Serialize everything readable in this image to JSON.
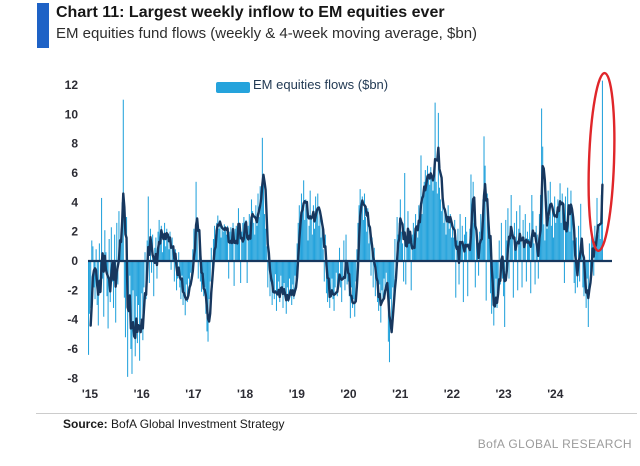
{
  "header": {
    "title": "Chart 11: Largest weekly inflow to EM equities ever",
    "subtitle": "EM equities fund flows (weekly & 4-week moving average, $bn)"
  },
  "legend": {
    "label": "EM equities flows ($bn)"
  },
  "footer": {
    "source_label": "Source:",
    "source_text": " BofA Global Investment Strategy",
    "brand": "BofA GLOBAL RESEARCH"
  },
  "colors": {
    "accent_bar": "#1e62c6",
    "bars": "#25a3dc",
    "ma_line": "#17375e",
    "annotation_red": "#e0262a",
    "brand_gray": "#9b9b9b"
  },
  "chart_data": {
    "type": "bar",
    "title": "EM equities fund flows",
    "unit": "$bn",
    "frequency": "weekly",
    "grid": false,
    "legend_position": "top-center",
    "x_ticks": [
      "'15",
      "'16",
      "'17",
      "'18",
      "'19",
      "'20",
      "'21",
      "'22",
      "'23",
      "'24"
    ],
    "y_ticks": [
      12,
      10,
      8,
      6,
      4,
      2,
      0,
      -2,
      -4,
      -6,
      -8
    ],
    "ylim": [
      -8,
      12
    ],
    "series": [
      {
        "name": "EM equities flows ($bn)",
        "type": "bar",
        "color": "#25a3dc",
        "values": [
          -6.4,
          -3.6,
          -3.2,
          1.4,
          1.0,
          -1.8,
          -2.6,
          0.8,
          -3.0,
          -4.4,
          1.2,
          -2.2,
          4.3,
          -1.2,
          -3.8,
          2.1,
          0.6,
          -2.4,
          -4.6,
          1.5,
          -2.8,
          2.3,
          -1.4,
          -3.2,
          1.8,
          -4.2,
          2.6,
          -1.6,
          3.4,
          1.2,
          2.2,
          4.0,
          11.0,
          -2.5,
          -5.2,
          3.0,
          -7.9,
          -3.5,
          -1.0,
          -6.0,
          -7.7,
          -2.0,
          -4.8,
          -6.5,
          -2.4,
          -5.6,
          -3.0,
          -6.8,
          -4.0,
          -2.2,
          -5.4,
          -1.8,
          0.6,
          -2.6,
          1.4,
          4.4,
          -1.5,
          2.2,
          -0.8,
          1.8,
          -2.4,
          0.9,
          1.6,
          -1.2,
          2.0,
          2.8,
          1.2,
          2.4,
          0.6,
          1.8,
          2.6,
          1.0,
          2.2,
          1.4,
          0.8,
          2.0,
          -0.6,
          1.6,
          1.0,
          -1.4,
          0.8,
          -2.0,
          -1.2,
          0.6,
          -1.8,
          -2.6,
          -1.0,
          -3.0,
          -2.2,
          -3.7,
          -1.6,
          -2.8,
          -1.2,
          -1.6,
          -0.8,
          -1.2,
          0.8,
          2.2,
          1.4,
          5.4,
          2.6,
          -1.2,
          1.6,
          -1.4,
          -2.1,
          -1.6,
          -2.4,
          -1.8,
          -3.6,
          -4.8,
          -5.5,
          -2.6,
          -1.4,
          0.9,
          -1.8,
          1.5,
          2.4,
          1.8,
          2.6,
          3.1,
          2.2,
          2.8,
          1.6,
          2.4,
          2.0,
          2.5,
          2.2,
          1.8,
          2.4,
          -1.2,
          2.0,
          2.3,
          1.8,
          2.6,
          -1.7,
          2.2,
          2.4,
          1.9,
          3.6,
          2.2,
          -1.5,
          2.0,
          2.6,
          3.0,
          2.2,
          2.8,
          -1.5,
          2.4,
          3.2,
          2.0,
          4.2,
          3.4,
          2.6,
          1.8,
          3.8,
          2.4,
          4.6,
          3.0,
          5.1,
          4.4,
          8.4,
          5.6,
          3.2,
          2.2,
          1.0,
          -1.8,
          0.8,
          -2.4,
          -1.2,
          -3.0,
          -1.8,
          -2.6,
          -0.9,
          -3.4,
          -2.2,
          -1.4,
          -2.8,
          -1.0,
          -2.0,
          -3.2,
          -1.5,
          -2.4,
          -3.6,
          -1.8,
          -2.8,
          -1.2,
          -2.2,
          -3.0,
          -1.6,
          -2.6,
          -1.0,
          -2.0,
          1.2,
          2.6,
          3.8,
          2.2,
          4.6,
          3.4,
          5.5,
          2.8,
          4.2,
          3.6,
          1.4,
          2.4,
          4.8,
          3.0,
          1.8,
          3.8,
          2.2,
          4.4,
          3.2,
          4.6,
          2.4,
          3.4,
          1.6,
          2.8,
          0.8,
          -1.4,
          1.8,
          -2.2,
          -2.8,
          -1.6,
          -3.2,
          -2.0,
          -1.2,
          -2.6,
          -3.4,
          -1.8,
          -0.8,
          -2.4,
          -1.4,
          0.9,
          -1.8,
          -2.8,
          -1.2,
          1.4,
          -2.0,
          1.8,
          -1.6,
          -1.4,
          -2.4,
          -3.9,
          -1.8,
          -3.2,
          -2.6,
          -3.8,
          -1.4,
          0.8,
          2.6,
          3.8,
          4.9,
          3.4,
          4.4,
          2.8,
          4.6,
          3.0,
          2.0,
          3.6,
          1.2,
          2.4,
          -1.0,
          1.6,
          -1.8,
          0.9,
          -2.4,
          -1.2,
          -2.8,
          -3.4,
          -1.6,
          -4.2,
          -2.0,
          -2.8,
          -1.2,
          -2.2,
          -0.8,
          -1.8,
          -5.5,
          -6.9,
          -2.6,
          -4.4,
          -1.8,
          -3.0,
          1.5,
          -1.4,
          3.0,
          1.8,
          2.6,
          4.2,
          2.0,
          1.2,
          -1.4,
          6.0,
          -1.6,
          1.0,
          3.4,
          2.2,
          1.4,
          -2.0,
          1.8,
          2.6,
          1.2,
          3.2,
          2.4,
          1.6,
          3.8,
          2.8,
          7.2,
          3.2,
          4.5,
          5.4,
          6.2,
          5.0,
          6.5,
          5.8,
          5.2,
          6.4,
          5.6,
          4.8,
          6.6,
          10.8,
          5.4,
          4.6,
          10.1,
          5.0,
          4.2,
          3.4,
          4.4,
          2.6,
          3.6,
          1.8,
          2.8,
          3.8,
          2.2,
          3.2,
          1.6,
          2.4,
          1.6,
          2.8,
          -2.5,
          1.4,
          2.2,
          -1.6,
          3.2,
          1.2,
          2.4,
          -2.8,
          1.8,
          3.0,
          2.0,
          -2.4,
          1.2,
          2.2,
          5.9,
          3.4,
          5.4,
          2.6,
          -1.8,
          2.2,
          1.4,
          -1.0,
          2.0,
          3.2,
          1.8,
          4.2,
          8.5,
          6.5,
          -2.7,
          4.6,
          2.8,
          1.6,
          -2.2,
          -3.6,
          -1.8,
          -4.4,
          -2.6,
          -1.2,
          -3.2,
          -2.0,
          1.4,
          -1.6,
          2.6,
          -1.2,
          -2.4,
          -4.5,
          2.8,
          1.4,
          3.6,
          -1.2,
          2.4,
          4.5,
          1.8,
          -2.5,
          2.6,
          1.2,
          3.4,
          -2.0,
          2.2,
          3.8,
          1.6,
          -1.8,
          2.8,
          1.2,
          3.2,
          -1.4,
          2.0,
          1.5,
          2.6,
          -2.2,
          4.5,
          3.4,
          1.2,
          -1.6,
          2.4,
          1.8,
          -1.2,
          3.2,
          4.5,
          10.4,
          7.8,
          2.5,
          1.4,
          3.6,
          2.2,
          4.8,
          3.0,
          5.4,
          2.4,
          3.8,
          1.6,
          4.4,
          2.6,
          3.4,
          4.2,
          3.4,
          5.3,
          2.6,
          4.6,
          3.0,
          -1.5,
          4.4,
          2.2,
          5.0,
          3.6,
          2.0,
          4.8,
          3.8,
          1.4,
          -1.5,
          -2.2,
          1.6,
          -1.8,
          2.4,
          -1.4,
          3.9,
          1.2,
          -1.8,
          -2.4,
          -1.2,
          -3.2,
          -1.2,
          -4.5,
          1.2,
          -1.4,
          2.0,
          1.6,
          -1.0,
          2.4,
          1.2,
          4.3,
          1.8,
          2.5,
          1.5,
          4.5,
          12.3
        ]
      },
      {
        "name": "4-week moving average",
        "type": "line",
        "color": "#17375e",
        "derived_from": "4-week trailing moving average of the weekly bar values"
      }
    ],
    "annotations": [
      {
        "type": "ellipse",
        "color": "#e0262a",
        "note": "red ellipse circling the latest bar: record weekly inflow of about $12.3bn in early 2024"
      }
    ]
  }
}
